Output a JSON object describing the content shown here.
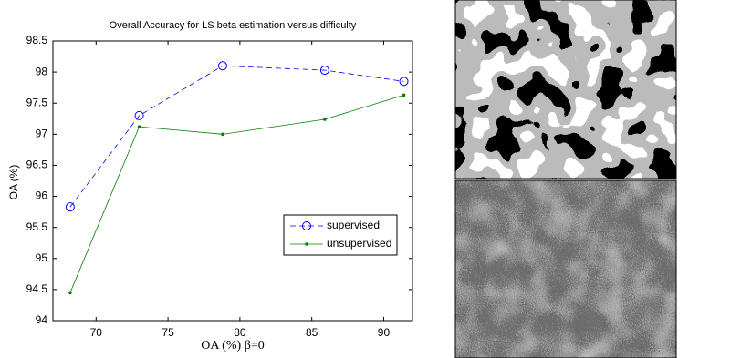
{
  "chart_data": {
    "type": "line",
    "title": "Overall Accuracy for LS beta estimation versus difficulty",
    "x_label": "OA (%)  β=0",
    "y_label": "OA (%)",
    "x": [
      68.2,
      73.0,
      78.8,
      85.9,
      91.4
    ],
    "series": [
      {
        "name": "supervised",
        "color": "#0000ff",
        "dash": true,
        "marker": "circle",
        "values": [
          95.83,
          97.3,
          98.1,
          98.03,
          97.85
        ]
      },
      {
        "name": "unsupervised",
        "color": "#008000",
        "dash": false,
        "marker": "dot",
        "values": [
          94.45,
          97.12,
          97.0,
          97.24,
          97.63
        ]
      }
    ],
    "xlim": [
      67.0,
      92.0
    ],
    "xticks": [
      70,
      75,
      80,
      85,
      90
    ],
    "ylim": [
      94,
      98.5
    ],
    "yticks": [
      94,
      94.5,
      95,
      95.5,
      96,
      96.5,
      97,
      97.5,
      98,
      98.5
    ],
    "grid": false,
    "legend": "center right"
  }
}
